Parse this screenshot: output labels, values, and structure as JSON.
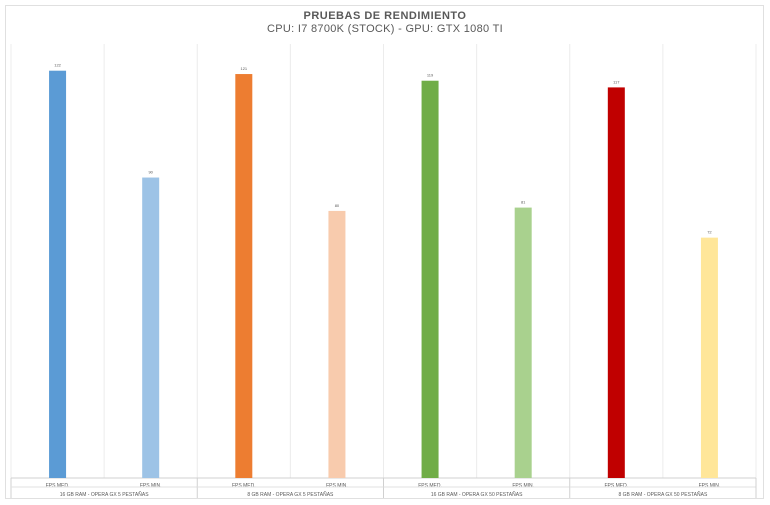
{
  "chart_data": {
    "type": "bar",
    "title": "PRUEBAS DE RENDIMIENTO",
    "subtitle": "CPU: I7 8700K (STOCK) - GPU: GTX 1080 TI",
    "xlabel": "",
    "ylabel": "",
    "ylim": [
      0,
      130
    ],
    "grid": true,
    "legend": "none",
    "groups": [
      {
        "label": "16 GB RAM - OPERA GX 5 PESTAÑAS",
        "bars": [
          {
            "label": "FPS MED.",
            "value": 122,
            "color": "#5b9bd5"
          },
          {
            "label": "FPS MIN.",
            "value": 90,
            "color": "#9dc3e6"
          }
        ]
      },
      {
        "label": "8 GB RAM - OPERA GX 5 PESTAÑAS",
        "bars": [
          {
            "label": "FPS MED.",
            "value": 121,
            "color": "#ed7d31"
          },
          {
            "label": "FPS MIN.",
            "value": 80,
            "color": "#f8cbad"
          }
        ]
      },
      {
        "label": "16 GB RAM - OPERA GX 50 PESTAÑAS",
        "bars": [
          {
            "label": "FPS MED.",
            "value": 119,
            "color": "#70ad47"
          },
          {
            "label": "FPS MIN.",
            "value": 81,
            "color": "#a9d18e"
          }
        ]
      },
      {
        "label": "8 GB RAM - OPERA GX 50 PESTAÑAS",
        "bars": [
          {
            "label": "FPS MED.",
            "value": 117,
            "color": "#c00000"
          },
          {
            "label": "FPS MIN.",
            "value": 72,
            "color": "#ffe699"
          }
        ]
      }
    ]
  }
}
